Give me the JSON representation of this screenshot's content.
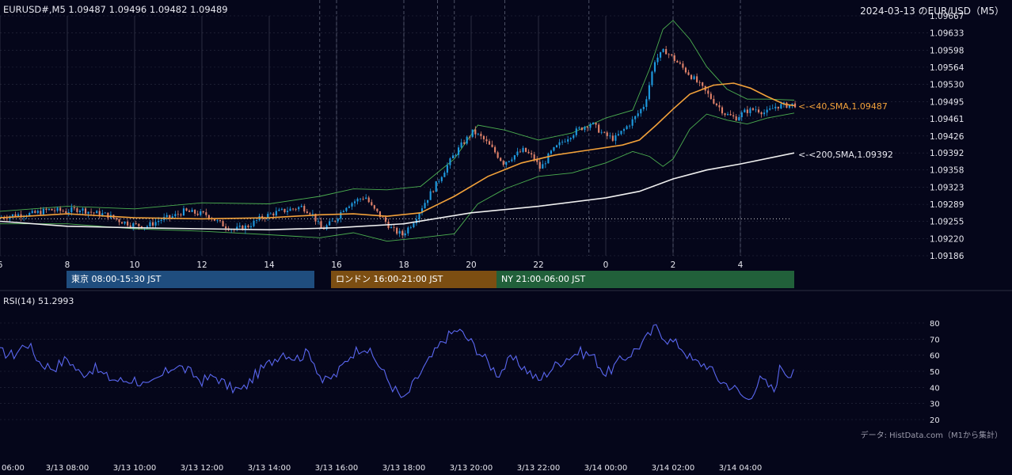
{
  "header": {
    "ohlc_title": "EURUSD#,M5 1.09487 1.09496 1.09482 1.09489",
    "chart_title": "2024-03-13 のEUR/USD（M5）"
  },
  "sessions": [
    {
      "label": "東京 08:00-15:30 JST",
      "color": "#1f4d7e"
    },
    {
      "label": "ロンドン 16:00-21:00 JST",
      "color": "#7c4e12"
    },
    {
      "label": "NY 21:00-06:00 JST",
      "color": "#21603a"
    }
  ],
  "colors": {
    "background": "#05061a",
    "bull": "#1e9be0",
    "bear": "#e0826a",
    "sma40": "#f2a13a",
    "sma200": "#f0f0f0",
    "bollinger": "#4caf50",
    "rsi": "#5a67f0",
    "grid": "#2a2d40",
    "session_line": "#55596e"
  },
  "rsi_label": "RSI(14) 51.2993",
  "source_note": "データ: HistData.com（M1から集計）",
  "annotations": {
    "sma40": "<-<40,SMA,1.09487",
    "sma200": "<-<200,SMA,1.09392"
  },
  "chart_data": {
    "type": "candlestick",
    "title": "2024-03-13 のEUR/USD（M5）",
    "price_axis": {
      "range": [
        1.09186,
        1.09667
      ],
      "ticks": [
        "1.09667",
        "1.09633",
        "1.09598",
        "1.09564",
        "1.09530",
        "1.09495",
        "1.09461",
        "1.09426",
        "1.09392",
        "1.09358",
        "1.09323",
        "1.09289",
        "1.09255",
        "1.09220",
        "1.09186"
      ]
    },
    "time_axis": {
      "range_hours": [
        6,
        29.6
      ],
      "ticks": [
        {
          "t": 6,
          "label": "6"
        },
        {
          "t": 8,
          "label": "8"
        },
        {
          "t": 10,
          "label": "10"
        },
        {
          "t": 12,
          "label": "12"
        },
        {
          "t": 14,
          "label": "14"
        },
        {
          "t": 16,
          "label": "16"
        },
        {
          "t": 18,
          "label": "18"
        },
        {
          "t": 20,
          "label": "20"
        },
        {
          "t": 22,
          "label": "22"
        },
        {
          "t": 24,
          "label": "0"
        },
        {
          "t": 26,
          "label": "2"
        },
        {
          "t": 28,
          "label": "4"
        }
      ],
      "bottom_ticks": [
        {
          "t": 6,
          "label": "06:00"
        },
        {
          "t": 8,
          "label": "3/13 08:00"
        },
        {
          "t": 10,
          "label": "3/13 10:00"
        },
        {
          "t": 12,
          "label": "3/13 12:00"
        },
        {
          "t": 14,
          "label": "3/13 14:00"
        },
        {
          "t": 16,
          "label": "3/13 16:00"
        },
        {
          "t": 18,
          "label": "3/13 18:00"
        },
        {
          "t": 20,
          "label": "3/13 20:00"
        },
        {
          "t": 22,
          "label": "3/13 22:00"
        },
        {
          "t": 24,
          "label": "3/14 00:00"
        },
        {
          "t": 26,
          "label": "3/14 02:00"
        },
        {
          "t": 28,
          "label": "3/14 04:00"
        }
      ]
    },
    "reference_price": 1.0926,
    "sessions": [
      {
        "start": 8.0,
        "end": 15.5
      },
      {
        "start": 16.0,
        "end": 21.0
      },
      {
        "start": 21.0,
        "end": 29.6
      }
    ],
    "price_path": [
      [
        6.0,
        1.09262
      ],
      [
        6.5,
        1.09268
      ],
      [
        7.0,
        1.0927
      ],
      [
        7.5,
        1.09278
      ],
      [
        8.0,
        1.09275
      ],
      [
        8.4,
        1.0928
      ],
      [
        8.8,
        1.09272
      ],
      [
        9.2,
        1.09268
      ],
      [
        9.6,
        1.09256
      ],
      [
        10.0,
        1.09248
      ],
      [
        10.4,
        1.09245
      ],
      [
        10.8,
        1.09258
      ],
      [
        11.2,
        1.09265
      ],
      [
        11.5,
        1.09275
      ],
      [
        11.8,
        1.09272
      ],
      [
        12.2,
        1.09268
      ],
      [
        12.6,
        1.0925
      ],
      [
        13.0,
        1.09238
      ],
      [
        13.4,
        1.09245
      ],
      [
        13.8,
        1.09262
      ],
      [
        14.2,
        1.09272
      ],
      [
        14.6,
        1.09278
      ],
      [
        15.0,
        1.09284
      ],
      [
        15.3,
        1.09272
      ],
      [
        15.6,
        1.09238
      ],
      [
        16.0,
        1.09258
      ],
      [
        16.3,
        1.09285
      ],
      [
        16.6,
        1.09296
      ],
      [
        16.9,
        1.09305
      ],
      [
        17.1,
        1.09282
      ],
      [
        17.4,
        1.09262
      ],
      [
        17.7,
        1.09238
      ],
      [
        18.0,
        1.09228
      ],
      [
        18.3,
        1.09252
      ],
      [
        18.6,
        1.09286
      ],
      [
        18.9,
        1.09318
      ],
      [
        19.2,
        1.09352
      ],
      [
        19.5,
        1.09385
      ],
      [
        19.8,
        1.09412
      ],
      [
        20.1,
        1.09435
      ],
      [
        20.4,
        1.0942
      ],
      [
        20.7,
        1.09398
      ],
      [
        21.0,
        1.09372
      ],
      [
        21.3,
        1.09386
      ],
      [
        21.6,
        1.09398
      ],
      [
        21.9,
        1.09382
      ],
      [
        22.1,
        1.0936
      ],
      [
        22.4,
        1.09392
      ],
      [
        22.8,
        1.09418
      ],
      [
        23.2,
        1.09438
      ],
      [
        23.6,
        1.09452
      ],
      [
        24.0,
        1.09428
      ],
      [
        24.3,
        1.0942
      ],
      [
        24.6,
        1.0944
      ],
      [
        24.9,
        1.09462
      ],
      [
        25.2,
        1.0949
      ],
      [
        25.5,
        1.09578
      ],
      [
        25.8,
        1.09598
      ],
      [
        26.1,
        1.09578
      ],
      [
        26.4,
        1.09558
      ],
      [
        26.7,
        1.09538
      ],
      [
        27.0,
        1.09515
      ],
      [
        27.3,
        1.09492
      ],
      [
        27.6,
        1.0947
      ],
      [
        27.9,
        1.09462
      ],
      [
        28.2,
        1.09476
      ],
      [
        28.5,
        1.0948
      ],
      [
        28.8,
        1.09472
      ],
      [
        29.1,
        1.09486
      ],
      [
        29.6,
        1.09489
      ]
    ],
    "sma40_path": [
      [
        6.0,
        1.09262
      ],
      [
        8.0,
        1.0927
      ],
      [
        10.0,
        1.09262
      ],
      [
        12.0,
        1.0926
      ],
      [
        14.0,
        1.09262
      ],
      [
        15.5,
        1.09268
      ],
      [
        16.5,
        1.0927
      ],
      [
        17.5,
        1.09265
      ],
      [
        18.5,
        1.09272
      ],
      [
        19.5,
        1.09305
      ],
      [
        20.5,
        1.09345
      ],
      [
        21.5,
        1.09372
      ],
      [
        22.5,
        1.09388
      ],
      [
        23.5,
        1.09398
      ],
      [
        24.5,
        1.09408
      ],
      [
        25.0,
        1.09418
      ],
      [
        25.5,
        1.09448
      ],
      [
        26.0,
        1.0948
      ],
      [
        26.5,
        1.0951
      ],
      [
        27.2,
        1.09528
      ],
      [
        27.8,
        1.09532
      ],
      [
        28.3,
        1.09522
      ],
      [
        28.8,
        1.09505
      ],
      [
        29.3,
        1.0949
      ],
      [
        29.6,
        1.09487
      ]
    ],
    "sma200_path": [
      [
        6.0,
        1.09255
      ],
      [
        8.0,
        1.09245
      ],
      [
        10.0,
        1.09242
      ],
      [
        12.0,
        1.0924
      ],
      [
        14.0,
        1.09238
      ],
      [
        16.0,
        1.09242
      ],
      [
        18.0,
        1.0925
      ],
      [
        20.0,
        1.09272
      ],
      [
        22.0,
        1.09285
      ],
      [
        24.0,
        1.09302
      ],
      [
        25.0,
        1.09315
      ],
      [
        26.0,
        1.0934
      ],
      [
        27.0,
        1.09358
      ],
      [
        28.0,
        1.0937
      ],
      [
        29.6,
        1.09392
      ]
    ],
    "bollinger_upper": [
      [
        6.0,
        1.09275
      ],
      [
        8.0,
        1.09285
      ],
      [
        10.0,
        1.0928
      ],
      [
        12.0,
        1.09292
      ],
      [
        14.0,
        1.0929
      ],
      [
        15.5,
        1.09305
      ],
      [
        16.5,
        1.0932
      ],
      [
        17.5,
        1.09318
      ],
      [
        18.5,
        1.09325
      ],
      [
        19.5,
        1.0938
      ],
      [
        20.2,
        1.09448
      ],
      [
        21.0,
        1.09438
      ],
      [
        22.0,
        1.09418
      ],
      [
        23.0,
        1.09432
      ],
      [
        24.0,
        1.09462
      ],
      [
        24.8,
        1.09478
      ],
      [
        25.3,
        1.0956
      ],
      [
        25.7,
        1.0964
      ],
      [
        26.0,
        1.09658
      ],
      [
        26.5,
        1.0962
      ],
      [
        27.0,
        1.09565
      ],
      [
        27.6,
        1.0952
      ],
      [
        28.2,
        1.095
      ],
      [
        28.8,
        1.095
      ],
      [
        29.6,
        1.09498
      ]
    ],
    "bollinger_lower": [
      [
        6.0,
        1.0925
      ],
      [
        8.0,
        1.0925
      ],
      [
        10.0,
        1.0924
      ],
      [
        12.0,
        1.09235
      ],
      [
        14.0,
        1.09228
      ],
      [
        15.5,
        1.09222
      ],
      [
        16.5,
        1.09232
      ],
      [
        17.5,
        1.09215
      ],
      [
        18.5,
        1.09222
      ],
      [
        19.5,
        1.0923
      ],
      [
        20.2,
        1.0929
      ],
      [
        21.0,
        1.0932
      ],
      [
        22.0,
        1.09345
      ],
      [
        23.0,
        1.09352
      ],
      [
        24.0,
        1.09372
      ],
      [
        24.8,
        1.09395
      ],
      [
        25.3,
        1.09385
      ],
      [
        25.7,
        1.09365
      ],
      [
        26.0,
        1.0938
      ],
      [
        26.5,
        1.0944
      ],
      [
        27.0,
        1.0947
      ],
      [
        27.6,
        1.09458
      ],
      [
        28.2,
        1.0945
      ],
      [
        28.8,
        1.09462
      ],
      [
        29.6,
        1.09472
      ]
    ],
    "rsi": {
      "label": "RSI(14) 51.2993",
      "range": [
        20,
        80
      ],
      "ticks": [
        80,
        70,
        60,
        50,
        40,
        30,
        20
      ],
      "path": [
        [
          6.0,
          62
        ],
        [
          6.4,
          60
        ],
        [
          6.8,
          68
        ],
        [
          7.2,
          55
        ],
        [
          7.6,
          52
        ],
        [
          8.0,
          58
        ],
        [
          8.4,
          48
        ],
        [
          8.8,
          52
        ],
        [
          9.2,
          46
        ],
        [
          9.6,
          44
        ],
        [
          10.0,
          45
        ],
        [
          10.4,
          40
        ],
        [
          10.8,
          47
        ],
        [
          11.2,
          54
        ],
        [
          11.6,
          50
        ],
        [
          12.0,
          44
        ],
        [
          12.4,
          47
        ],
        [
          12.8,
          40
        ],
        [
          13.2,
          38
        ],
        [
          13.6,
          48
        ],
        [
          14.0,
          55
        ],
        [
          14.4,
          62
        ],
        [
          14.8,
          58
        ],
        [
          15.2,
          62
        ],
        [
          15.6,
          43
        ],
        [
          16.0,
          48
        ],
        [
          16.4,
          60
        ],
        [
          16.8,
          66
        ],
        [
          17.2,
          56
        ],
        [
          17.6,
          42
        ],
        [
          18.0,
          32
        ],
        [
          18.4,
          46
        ],
        [
          18.8,
          58
        ],
        [
          19.2,
          70
        ],
        [
          19.6,
          76
        ],
        [
          20.0,
          68
        ],
        [
          20.4,
          58
        ],
        [
          20.8,
          48
        ],
        [
          21.2,
          58
        ],
        [
          21.6,
          52
        ],
        [
          22.0,
          44
        ],
        [
          22.4,
          52
        ],
        [
          22.8,
          58
        ],
        [
          23.2,
          62
        ],
        [
          23.6,
          60
        ],
        [
          24.0,
          48
        ],
        [
          24.4,
          56
        ],
        [
          24.8,
          62
        ],
        [
          25.2,
          70
        ],
        [
          25.5,
          78
        ],
        [
          25.8,
          70
        ],
        [
          26.2,
          66
        ],
        [
          26.6,
          56
        ],
        [
          27.0,
          54
        ],
        [
          27.4,
          44
        ],
        [
          27.8,
          40
        ],
        [
          28.2,
          32
        ],
        [
          28.6,
          45
        ],
        [
          29.0,
          38
        ],
        [
          29.2,
          54
        ],
        [
          29.4,
          48
        ],
        [
          29.6,
          51.3
        ]
      ]
    }
  }
}
